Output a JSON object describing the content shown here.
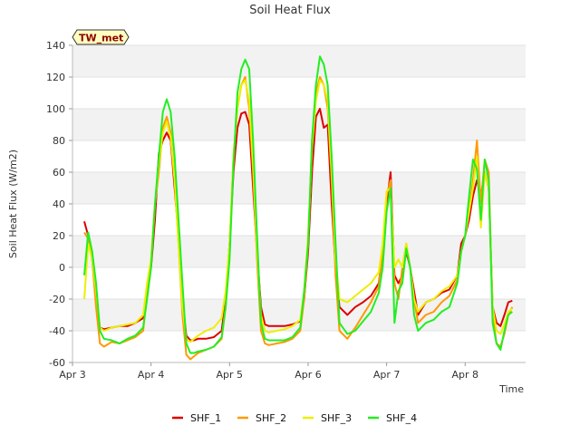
{
  "chart_data": {
    "type": "line",
    "title": "Soil Heat Flux",
    "xlabel": "Time",
    "ylabel": "Soil Heat Flux (W/m2)",
    "badge": "TW_met",
    "xlim": [
      3.0,
      8.77
    ],
    "ylim": [
      -60,
      140
    ],
    "yticks": [
      -60,
      -40,
      -20,
      0,
      20,
      40,
      60,
      80,
      100,
      120,
      140
    ],
    "xticks": [
      {
        "value": 3,
        "label": "Apr 3"
      },
      {
        "value": 4,
        "label": "Apr 4"
      },
      {
        "value": 5,
        "label": "Apr 5"
      },
      {
        "value": 6,
        "label": "Apr 6"
      },
      {
        "value": 7,
        "label": "Apr 7"
      },
      {
        "value": 8,
        "label": "Apr 8"
      }
    ],
    "legend_position": "bottom-center",
    "series": [
      {
        "name": "SHF_1",
        "color": "#dd0000",
        "x": [
          3.15,
          3.2,
          3.25,
          3.3,
          3.35,
          3.4,
          3.5,
          3.6,
          3.7,
          3.8,
          3.9,
          3.95,
          4.0,
          4.05,
          4.1,
          4.15,
          4.2,
          4.25,
          4.3,
          4.35,
          4.4,
          4.45,
          4.5,
          4.55,
          4.6,
          4.7,
          4.8,
          4.9,
          4.95,
          5.0,
          5.05,
          5.1,
          5.15,
          5.2,
          5.25,
          5.3,
          5.35,
          5.4,
          5.45,
          5.5,
          5.6,
          5.7,
          5.8,
          5.9,
          5.95,
          6.0,
          6.05,
          6.1,
          6.15,
          6.2,
          6.25,
          6.3,
          6.35,
          6.4,
          6.5,
          6.6,
          6.7,
          6.8,
          6.9,
          6.95,
          7.0,
          7.05,
          7.1,
          7.15,
          7.2,
          7.25,
          7.3,
          7.35,
          7.4,
          7.5,
          7.6,
          7.7,
          7.8,
          7.9,
          7.95,
          8.0,
          8.05,
          8.1,
          8.15,
          8.2,
          8.25,
          8.3,
          8.35,
          8.4,
          8.45,
          8.5,
          8.55,
          8.6
        ],
        "y": [
          29,
          20,
          5,
          -20,
          -38,
          -39,
          -38,
          -37,
          -37,
          -35,
          -32,
          -15,
          0,
          30,
          72,
          80,
          85,
          80,
          50,
          20,
          -20,
          -43,
          -46,
          -46,
          -45,
          -45,
          -44,
          -40,
          -20,
          15,
          60,
          88,
          97,
          98,
          90,
          50,
          10,
          -25,
          -36,
          -37,
          -37,
          -37,
          -36,
          -34,
          -20,
          10,
          60,
          95,
          100,
          88,
          90,
          40,
          0,
          -25,
          -30,
          -25,
          -22,
          -18,
          -10,
          10,
          40,
          60,
          -5,
          -10,
          -5,
          10,
          0,
          -15,
          -30,
          -22,
          -20,
          -16,
          -14,
          -5,
          15,
          20,
          30,
          45,
          55,
          45,
          60,
          50,
          -25,
          -35,
          -37,
          -30,
          -22,
          -21
        ]
      },
      {
        "name": "SHF_2",
        "color": "#ff9900",
        "x": [
          3.15,
          3.2,
          3.25,
          3.3,
          3.35,
          3.4,
          3.5,
          3.6,
          3.7,
          3.8,
          3.9,
          3.95,
          4.0,
          4.05,
          4.1,
          4.15,
          4.2,
          4.25,
          4.3,
          4.35,
          4.4,
          4.45,
          4.5,
          4.55,
          4.6,
          4.7,
          4.8,
          4.9,
          4.95,
          5.0,
          5.05,
          5.1,
          5.15,
          5.2,
          5.25,
          5.3,
          5.35,
          5.4,
          5.45,
          5.5,
          5.6,
          5.7,
          5.8,
          5.9,
          5.95,
          6.0,
          6.05,
          6.1,
          6.15,
          6.2,
          6.25,
          6.3,
          6.35,
          6.4,
          6.5,
          6.6,
          6.7,
          6.8,
          6.9,
          6.95,
          7.0,
          7.05,
          7.1,
          7.15,
          7.2,
          7.25,
          7.3,
          7.35,
          7.4,
          7.5,
          7.6,
          7.7,
          7.8,
          7.9,
          7.95,
          8.0,
          8.05,
          8.1,
          8.15,
          8.2,
          8.25,
          8.3,
          8.35,
          8.4,
          8.45,
          8.5,
          8.55,
          8.6
        ],
        "y": [
          22,
          18,
          5,
          -25,
          -48,
          -50,
          -47,
          -48,
          -46,
          -44,
          -40,
          -15,
          5,
          40,
          60,
          88,
          95,
          85,
          55,
          15,
          -30,
          -55,
          -58,
          -56,
          -54,
          -52,
          -50,
          -45,
          -25,
          10,
          70,
          100,
          115,
          120,
          100,
          60,
          5,
          -40,
          -48,
          -49,
          -48,
          -47,
          -45,
          -40,
          -20,
          15,
          80,
          110,
          120,
          115,
          100,
          55,
          -5,
          -40,
          -45,
          -38,
          -30,
          -22,
          -12,
          12,
          45,
          55,
          -10,
          -20,
          0,
          15,
          0,
          -20,
          -35,
          -30,
          -28,
          -22,
          -18,
          -8,
          10,
          20,
          35,
          55,
          80,
          40,
          68,
          60,
          -30,
          -48,
          -50,
          -42,
          -30,
          -25
        ]
      },
      {
        "name": "SHF_3",
        "color": "#eeee00",
        "x": [
          3.15,
          3.2,
          3.25,
          3.3,
          3.35,
          3.4,
          3.5,
          3.6,
          3.7,
          3.8,
          3.9,
          3.95,
          4.0,
          4.05,
          4.1,
          4.15,
          4.2,
          4.25,
          4.3,
          4.35,
          4.4,
          4.45,
          4.5,
          4.55,
          4.6,
          4.7,
          4.8,
          4.9,
          4.95,
          5.0,
          5.05,
          5.1,
          5.15,
          5.2,
          5.25,
          5.3,
          5.35,
          5.4,
          5.45,
          5.5,
          5.6,
          5.7,
          5.8,
          5.9,
          5.95,
          6.0,
          6.05,
          6.1,
          6.15,
          6.2,
          6.25,
          6.3,
          6.35,
          6.4,
          6.5,
          6.6,
          6.7,
          6.8,
          6.9,
          6.95,
          7.0,
          7.05,
          7.1,
          7.15,
          7.2,
          7.25,
          7.3,
          7.35,
          7.4,
          7.5,
          7.6,
          7.7,
          7.8,
          7.9,
          7.95,
          8.0,
          8.05,
          8.1,
          8.15,
          8.2,
          8.25,
          8.3,
          8.35,
          8.4,
          8.45,
          8.5,
          8.55,
          8.6
        ],
        "y": [
          -20,
          15,
          5,
          -15,
          -38,
          -40,
          -38,
          -37,
          -36,
          -35,
          -30,
          -10,
          5,
          40,
          65,
          85,
          92,
          82,
          55,
          15,
          -25,
          -45,
          -47,
          -45,
          -43,
          -40,
          -38,
          -32,
          -15,
          15,
          70,
          100,
          115,
          118,
          105,
          65,
          10,
          -30,
          -40,
          -41,
          -40,
          -39,
          -37,
          -33,
          -15,
          20,
          75,
          105,
          118,
          115,
          105,
          60,
          5,
          -20,
          -22,
          -18,
          -14,
          -10,
          -3,
          15,
          48,
          50,
          0,
          5,
          0,
          15,
          0,
          -20,
          -28,
          -22,
          -20,
          -15,
          -12,
          -5,
          10,
          20,
          35,
          50,
          70,
          25,
          60,
          50,
          -25,
          -40,
          -42,
          -36,
          -28,
          -26
        ]
      },
      {
        "name": "SHF_4",
        "color": "#22ee22",
        "x": [
          3.15,
          3.2,
          3.25,
          3.3,
          3.35,
          3.4,
          3.5,
          3.6,
          3.7,
          3.8,
          3.9,
          3.95,
          4.0,
          4.05,
          4.1,
          4.15,
          4.2,
          4.25,
          4.3,
          4.35,
          4.4,
          4.45,
          4.5,
          4.55,
          4.6,
          4.7,
          4.8,
          4.9,
          4.95,
          5.0,
          5.05,
          5.1,
          5.15,
          5.2,
          5.25,
          5.3,
          5.35,
          5.4,
          5.45,
          5.5,
          5.6,
          5.7,
          5.8,
          5.9,
          5.95,
          6.0,
          6.05,
          6.1,
          6.15,
          6.2,
          6.25,
          6.3,
          6.35,
          6.4,
          6.5,
          6.6,
          6.7,
          6.8,
          6.9,
          6.95,
          7.0,
          7.05,
          7.1,
          7.15,
          7.2,
          7.25,
          7.3,
          7.35,
          7.4,
          7.5,
          7.6,
          7.7,
          7.8,
          7.9,
          7.95,
          8.0,
          8.05,
          8.1,
          8.15,
          8.2,
          8.25,
          8.3,
          8.35,
          8.4,
          8.45,
          8.5,
          8.55,
          8.6
        ],
        "y": [
          -5,
          22,
          10,
          -10,
          -40,
          -45,
          -46,
          -48,
          -45,
          -43,
          -38,
          -20,
          0,
          40,
          70,
          98,
          106,
          98,
          70,
          30,
          -10,
          -48,
          -54,
          -54,
          -53,
          -52,
          -50,
          -44,
          -25,
          5,
          65,
          110,
          125,
          131,
          125,
          80,
          20,
          -35,
          -45,
          -46,
          -46,
          -46,
          -44,
          -38,
          -15,
          15,
          80,
          115,
          133,
          128,
          115,
          70,
          15,
          -35,
          -42,
          -40,
          -34,
          -28,
          -16,
          0,
          35,
          50,
          -35,
          -15,
          -10,
          12,
          0,
          -30,
          -40,
          -35,
          -33,
          -28,
          -25,
          -10,
          10,
          20,
          45,
          68,
          62,
          30,
          68,
          55,
          -35,
          -48,
          -52,
          -40,
          -30,
          -28
        ]
      }
    ]
  }
}
